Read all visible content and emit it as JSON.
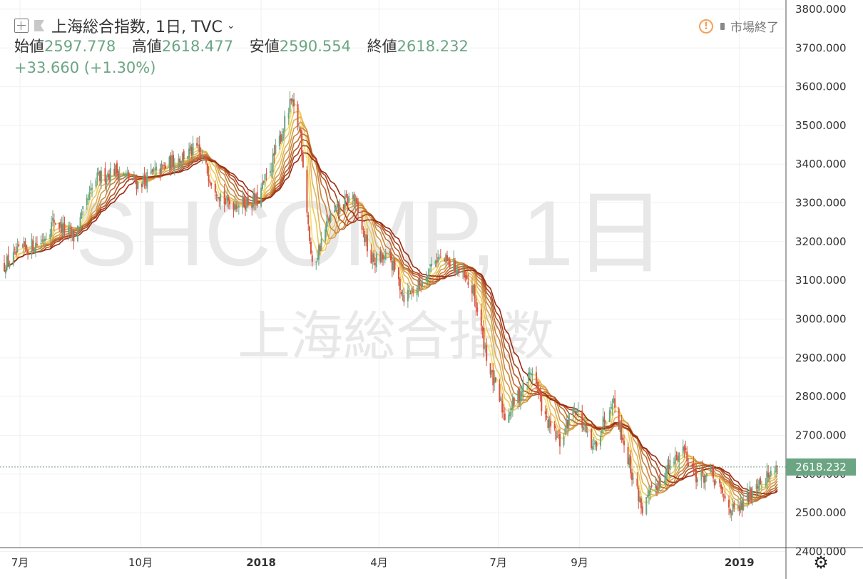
{
  "header": {
    "symbol_title": "上海総合指数, 1日, TVC",
    "open_label": "始値",
    "open_value": "2597.778",
    "high_label": "高値",
    "high_value": "2618.477",
    "low_label": "安値",
    "low_value": "2590.554",
    "close_label": "終値",
    "close_value": "2618.232",
    "change": "+33.660 (+1.30%)",
    "market_status": "市場終了",
    "warning_glyph": "!"
  },
  "watermark": {
    "symbol": "SHCOMP, 1日",
    "name": "上海総合指数"
  },
  "last_price_tag": "2618.232",
  "colors": {
    "up": "#6ba583",
    "down": "#d75442",
    "ma_fast": "#f7e06a",
    "ma_slow": "#9b2a12",
    "price_tag_bg": "#6ba583"
  },
  "icons": {
    "add": "plus-square-icon",
    "flag": "flag-icon",
    "chevron": "chevron-down-icon",
    "warning": "warning-circle-icon",
    "settings": "gear-icon"
  },
  "chart_data": {
    "type": "candlestick",
    "title": "上海総合指数, 1日, TVC",
    "ylim": [
      2395,
      3810
    ],
    "y_ticks": [
      2400,
      2500,
      2600,
      2700,
      2800,
      2900,
      3000,
      3100,
      3200,
      3300,
      3400,
      3500,
      3600,
      3700,
      3800
    ],
    "x_ticks": [
      "7月",
      "10月",
      "2018",
      "4月",
      "7月",
      "9月",
      "2019"
    ],
    "last_value": 2618.232,
    "grid": true,
    "series_close_anchors": [
      [
        "2017-06-19",
        3140
      ],
      [
        "2017-07-03",
        3180
      ],
      [
        "2017-07-17",
        3200
      ],
      [
        "2017-07-27",
        3255
      ],
      [
        "2017-08-11",
        3210
      ],
      [
        "2017-08-28",
        3360
      ],
      [
        "2017-09-11",
        3385
      ],
      [
        "2017-09-29",
        3350
      ],
      [
        "2017-10-16",
        3385
      ],
      [
        "2017-10-27",
        3410
      ],
      [
        "2017-11-13",
        3440
      ],
      [
        "2017-11-24",
        3360
      ],
      [
        "2017-12-05",
        3300
      ],
      [
        "2017-12-18",
        3300
      ],
      [
        "2017-12-29",
        3305
      ],
      [
        "2018-01-10",
        3410
      ],
      [
        "2018-01-24",
        3560
      ],
      [
        "2018-01-31",
        3480
      ],
      [
        "2018-02-09",
        3130
      ],
      [
        "2018-02-22",
        3260
      ],
      [
        "2018-03-12",
        3320
      ],
      [
        "2018-03-26",
        3150
      ],
      [
        "2018-04-09",
        3160
      ],
      [
        "2018-04-20",
        3060
      ],
      [
        "2018-05-02",
        3090
      ],
      [
        "2018-05-14",
        3160
      ],
      [
        "2018-05-28",
        3140
      ],
      [
        "2018-06-12",
        3070
      ],
      [
        "2018-06-25",
        2860
      ],
      [
        "2018-07-06",
        2750
      ],
      [
        "2018-07-16",
        2800
      ],
      [
        "2018-07-27",
        2870
      ],
      [
        "2018-08-06",
        2740
      ],
      [
        "2018-08-17",
        2680
      ],
      [
        "2018-08-28",
        2780
      ],
      [
        "2018-09-11",
        2660
      ],
      [
        "2018-09-26",
        2800
      ],
      [
        "2018-10-11",
        2600
      ],
      [
        "2018-10-19",
        2510
      ],
      [
        "2018-10-29",
        2570
      ],
      [
        "2018-11-09",
        2620
      ],
      [
        "2018-11-19",
        2670
      ],
      [
        "2018-11-30",
        2590
      ],
      [
        "2018-12-10",
        2600
      ],
      [
        "2018-12-20",
        2540
      ],
      [
        "2018-12-28",
        2500
      ],
      [
        "2019-01-04",
        2520
      ],
      [
        "2019-01-14",
        2580
      ],
      [
        "2019-01-25",
        2600
      ],
      [
        "2019-01-30",
        2618.232
      ]
    ]
  }
}
